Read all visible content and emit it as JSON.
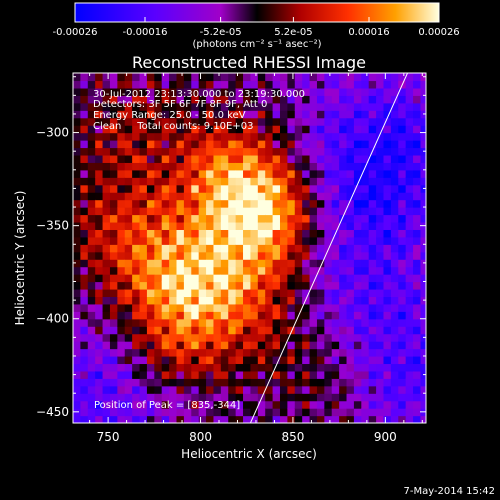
{
  "chart_data": {
    "type": "heatmap",
    "title": "Reconstructed RHESSI Image",
    "xlabel": "Heliocentric X (arcsec)",
    "ylabel": "Heliocentric Y (arcsec)",
    "xlim": [
      731,
      922
    ],
    "ylim": [
      -456,
      -268
    ],
    "xticks": [
      750,
      800,
      850,
      900
    ],
    "yticks": [
      -300,
      -350,
      -400,
      -450
    ],
    "colorbar": {
      "ticks": [
        "-0.00026",
        "-0.00016",
        "-5.2e-05",
        "5.2e-05",
        "0.00016",
        "0.00026"
      ],
      "label": "(photons cm⁻² s⁻¹ asec⁻²)",
      "range": [
        -0.00026,
        0.00026
      ]
    },
    "annotations": {
      "time": "30-Jul-2012 23:13:30.000 to 23:19:30.000",
      "detectors": "Detectors: 3F 5F 6F 7F 8F 9F, Att 0",
      "energy": "Energy Range: 25.0 - 50.0 keV",
      "clean": "Clean     Total counts: 9.10E+03",
      "peak": "Position of Peak = [835,-344]"
    },
    "limb_line": [
      [
        827,
        -456
      ],
      [
        912,
        -268
      ]
    ],
    "peak": [
      835,
      -344
    ],
    "emission_centers": [
      {
        "x": 793,
        "y": -380,
        "amp": 0.0002
      },
      {
        "x": 836,
        "y": -346,
        "amp": 0.00026
      },
      {
        "x": 815,
        "y": -322,
        "amp": 0.00016
      },
      {
        "x": 760,
        "y": -356,
        "amp": 0.00013
      },
      {
        "x": 782,
        "y": -415,
        "amp": 0.00012
      },
      {
        "x": 827,
        "y": -395,
        "amp": 0.00011
      },
      {
        "x": 872,
        "y": -432,
        "amp": 9e-05
      },
      {
        "x": 760,
        "y": -300,
        "amp": 8e-05
      }
    ],
    "negative_regions": [
      {
        "x": 900,
        "y": -310,
        "amp": -0.00016
      },
      {
        "x": 905,
        "y": -425,
        "amp": -0.00014
      },
      {
        "x": 750,
        "y": -440,
        "amp": -0.00012
      },
      {
        "x": 880,
        "y": -360,
        "amp": -0.0001
      }
    ]
  },
  "footer": {
    "date": "7-May-2014 15:42"
  }
}
